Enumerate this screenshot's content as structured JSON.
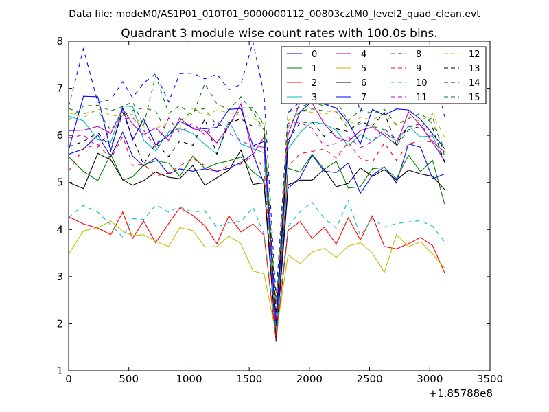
{
  "figure": {
    "suptitle": "Data file: modeM0/AS1P01_010T01_9000000112_00803cztM0_level2_quad_clean.evt",
    "x_offset_label": "+1.85788e8"
  },
  "chart_data": {
    "type": "line",
    "title": "Quadrant 3 module wise count rates with 100.0s bins.",
    "xlabel": "",
    "ylabel": "",
    "xlim": [
      0,
      3500
    ],
    "ylim": [
      1,
      8
    ],
    "x_offset": "+1.85788e8",
    "xticks": [
      0,
      500,
      1000,
      1500,
      2000,
      2500,
      3000,
      3500
    ],
    "yticks": [
      1,
      2,
      3,
      4,
      5,
      6,
      7,
      8
    ],
    "grid": false,
    "legend_position": "top-right",
    "legend_columns": 4,
    "x": [
      0,
      123,
      242,
      350,
      450,
      531,
      623,
      723,
      831,
      923,
      1031,
      1131,
      1231,
      1331,
      1431,
      1531,
      1623,
      1723,
      1823,
      1923,
      2023,
      2123,
      2223,
      2323,
      2423,
      2523,
      2623,
      2723,
      2823,
      2923,
      3023,
      3123
    ],
    "series": [
      {
        "name": "0",
        "color": "#0000ff",
        "dash": "solid",
        "values": [
          5.6,
          5.71,
          6.01,
          5.55,
          6.07,
          5.56,
          5.35,
          5.52,
          5.18,
          5.29,
          5.24,
          5.29,
          5.24,
          5.3,
          5.42,
          5.61,
          4.98,
          1.62,
          4.88,
          5.1,
          5.58,
          5.24,
          5.21,
          5.41,
          4.77,
          5.15,
          5.33,
          4.99,
          5.82,
          5.75,
          5.08,
          5.18
        ]
      },
      {
        "name": "1",
        "color": "#008000",
        "dash": "solid",
        "values": [
          5.55,
          5.23,
          5.04,
          5.6,
          5.05,
          5.12,
          5.37,
          5.46,
          5.41,
          5.13,
          5.56,
          5.3,
          5.4,
          5.46,
          5.54,
          5.22,
          5.05,
          1.7,
          5.3,
          5.22,
          5.6,
          5.28,
          5.45,
          4.88,
          4.91,
          5.29,
          5.32,
          5.08,
          5.58,
          5.23,
          5.47,
          4.54
        ]
      },
      {
        "name": "2",
        "color": "#ff0000",
        "dash": "solid",
        "values": [
          4.27,
          4.12,
          4.03,
          3.89,
          4.37,
          3.81,
          4.18,
          3.72,
          4.13,
          4.46,
          4.3,
          4.08,
          3.7,
          4.29,
          3.95,
          4.12,
          3.88,
          1.65,
          3.98,
          4.17,
          3.81,
          4.05,
          3.69,
          4.25,
          3.78,
          4.29,
          3.64,
          3.59,
          3.7,
          3.83,
          3.66,
          3.08
        ]
      },
      {
        "name": "3",
        "color": "#00bfbf",
        "dash": "solid",
        "values": [
          6.41,
          6.31,
          5.91,
          5.85,
          6.62,
          6.61,
          5.9,
          5.67,
          6.08,
          6.14,
          6.04,
          5.81,
          5.61,
          6.31,
          5.82,
          5.72,
          5.63,
          1.8,
          5.71,
          6.06,
          6.29,
          6.24,
          6.11,
          5.77,
          6.02,
          5.87,
          6.06,
          5.88,
          6.2,
          5.97,
          5.99,
          5.43
        ]
      },
      {
        "name": "4",
        "color": "#bf00bf",
        "dash": "solid",
        "values": [
          6.1,
          6.11,
          6.19,
          6.04,
          6.57,
          6.24,
          6.01,
          6.16,
          5.89,
          6.37,
          6.14,
          6.1,
          5.84,
          6.2,
          6.67,
          5.59,
          5.97,
          2.0,
          6.02,
          6.71,
          6.68,
          6.25,
          5.96,
          5.87,
          6.1,
          6.18,
          6.0,
          5.8,
          6.5,
          6.21,
          5.85,
          5.46
        ]
      },
      {
        "name": "5",
        "color": "#bfbf00",
        "dash": "solid",
        "values": [
          3.48,
          3.97,
          4.04,
          4.18,
          3.96,
          3.87,
          3.89,
          3.75,
          3.64,
          4.04,
          3.98,
          3.63,
          3.64,
          3.86,
          3.7,
          3.12,
          3.06,
          1.78,
          3.46,
          3.28,
          3.52,
          3.6,
          3.41,
          3.65,
          3.72,
          3.5,
          3.09,
          3.89,
          3.64,
          3.74,
          3.48,
          3.18
        ]
      },
      {
        "name": "6",
        "color": "#000000",
        "dash": "solid",
        "values": [
          5.0,
          4.87,
          5.62,
          5.48,
          5.06,
          4.94,
          5.04,
          5.22,
          5.11,
          5.08,
          5.36,
          4.94,
          5.1,
          5.26,
          5.69,
          4.96,
          4.99,
          1.7,
          4.95,
          5.05,
          5.05,
          5.28,
          4.91,
          4.98,
          5.31,
          5.13,
          5.27,
          5.05,
          5.26,
          5.18,
          5.13,
          4.85
        ]
      },
      {
        "name": "7",
        "color": "#0000ff",
        "dash": "solid",
        "values": [
          5.69,
          6.83,
          6.82,
          5.67,
          6.58,
          5.9,
          6.35,
          5.8,
          6.0,
          6.3,
          6.16,
          6.14,
          6.17,
          6.55,
          6.57,
          5.78,
          5.87,
          1.95,
          5.82,
          6.5,
          6.72,
          6.66,
          6.58,
          6.27,
          5.82,
          6.55,
          6.43,
          6.56,
          6.54,
          6.34,
          6.03,
          5.72
        ]
      },
      {
        "name": "8",
        "color": "#008000",
        "dash": "dashed",
        "values": [
          6.57,
          6.46,
          6.53,
          6.11,
          6.42,
          6.53,
          6.58,
          6.52,
          5.97,
          6.31,
          6.52,
          6.57,
          6.22,
          6.19,
          6.58,
          6.59,
          6.23,
          2.25,
          6.18,
          6.52,
          6.56,
          6.52,
          6.51,
          6.13,
          6.25,
          6.19,
          6.12,
          5.77,
          6.12,
          6.18,
          6.39,
          5.56
        ]
      },
      {
        "name": "9",
        "color": "#ff0000",
        "dash": "dashed",
        "values": [
          5.24,
          5.72,
          5.81,
          5.5,
          5.98,
          5.36,
          5.39,
          5.14,
          5.2,
          5.35,
          5.51,
          5.36,
          5.22,
          5.36,
          5.39,
          5.56,
          5.32,
          1.7,
          5.35,
          5.61,
          5.66,
          5.71,
          5.52,
          5.86,
          5.51,
          5.43,
          5.84,
          5.47,
          5.82,
          5.88,
          5.86,
          5.65
        ]
      },
      {
        "name": "10",
        "color": "#00bfbf",
        "dash": "dashed",
        "values": [
          4.26,
          4.51,
          4.37,
          4.1,
          3.84,
          4.23,
          4.21,
          4.52,
          4.37,
          4.48,
          4.37,
          4.4,
          4.05,
          4.15,
          4.17,
          4.47,
          3.91,
          1.85,
          4.06,
          4.38,
          4.58,
          4.24,
          4.03,
          4.62,
          3.86,
          4.24,
          4.05,
          4.13,
          4.16,
          4.19,
          4.07,
          3.74
        ]
      },
      {
        "name": "11",
        "color": "#bf00bf",
        "dash": "dashed",
        "values": [
          5.95,
          6.01,
          5.75,
          6.13,
          6.35,
          6.38,
          6.11,
          5.75,
          6.37,
          6.06,
          6.26,
          6.01,
          6.3,
          6.05,
          5.88,
          5.77,
          5.75,
          2.1,
          6.26,
          6.27,
          6.15,
          5.77,
          5.83,
          5.97,
          5.74,
          5.87,
          6.14,
          5.9,
          6.19,
          6.24,
          5.88,
          5.64
        ]
      },
      {
        "name": "12",
        "color": "#bfbf00",
        "dash": "dashed",
        "values": [
          6.48,
          6.38,
          6.56,
          6.42,
          6.41,
          6.45,
          6.18,
          6.14,
          6.28,
          6.14,
          6.58,
          6.42,
          6.53,
          6.48,
          6.43,
          6.36,
          6.25,
          2.3,
          6.31,
          6.52,
          6.49,
          6.45,
          6.51,
          6.21,
          6.38,
          6.33,
          6.45,
          6.22,
          6.35,
          6.31,
          6.46,
          5.96
        ]
      },
      {
        "name": "13",
        "color": "#000000",
        "dash": "dashed",
        "values": [
          5.76,
          5.87,
          6.06,
          5.73,
          6.49,
          5.95,
          5.38,
          5.84,
          5.55,
          5.88,
          5.79,
          6.35,
          5.6,
          6.26,
          6.35,
          6.19,
          6.21,
          2.2,
          5.9,
          6.27,
          6.29,
          5.98,
          6.14,
          6.08,
          6.3,
          6.2,
          6.48,
          5.8,
          6.2,
          6.15,
          6.16,
          5.42
        ]
      },
      {
        "name": "14",
        "color": "#0000ff",
        "dash": "dashed",
        "values": [
          6.61,
          7.84,
          6.7,
          6.76,
          7.14,
          6.8,
          7.11,
          7.31,
          6.71,
          7.31,
          7.32,
          7.2,
          7.3,
          6.97,
          7.08,
          7.98,
          6.88,
          2.55,
          6.49,
          6.71,
          6.82,
          7.17,
          7.12,
          7.31,
          6.51,
          7.17,
          6.96,
          7.18,
          7.2,
          7.47,
          7.49,
          6.4
        ]
      },
      {
        "name": "15",
        "color": "#008000",
        "dash": "dashed",
        "values": [
          6.32,
          6.62,
          6.64,
          6.52,
          6.61,
          6.71,
          6.21,
          7.27,
          6.47,
          6.63,
          6.43,
          7.1,
          6.67,
          6.54,
          6.82,
          6.5,
          6.11,
          2.4,
          6.49,
          6.59,
          6.71,
          6.62,
          6.73,
          6.31,
          6.54,
          6.47,
          6.55,
          6.23,
          6.36,
          6.47,
          6.25,
          5.71
        ]
      }
    ]
  }
}
